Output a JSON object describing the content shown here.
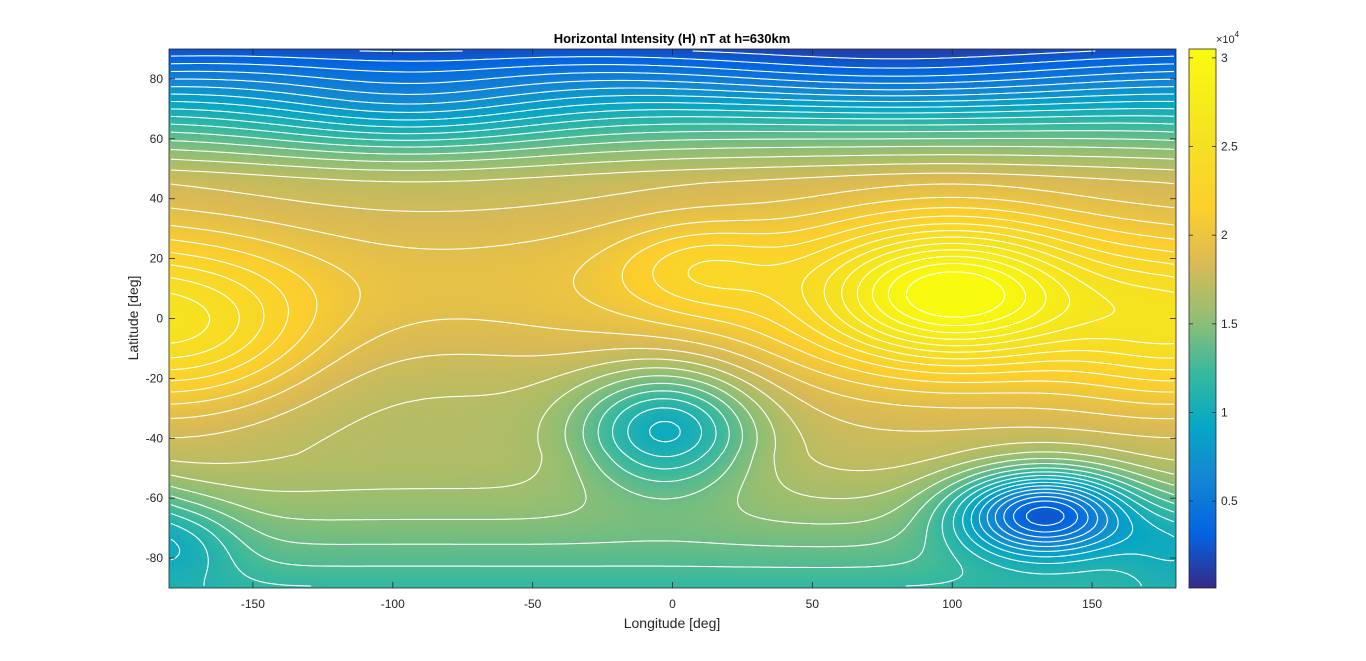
{
  "chart_data": {
    "type": "heatmap",
    "subtype": "filled contour with contour lines",
    "title": "Horizontal Intensity (H) nT at h=630km",
    "xlabel": "Longitude [deg]",
    "ylabel": "Latitude [deg]",
    "xlim": [
      -180,
      180
    ],
    "ylim": [
      -90,
      90
    ],
    "xticks": [
      -150,
      -100,
      -50,
      0,
      50,
      100,
      150
    ],
    "yticks": [
      -80,
      -60,
      -40,
      -20,
      0,
      20,
      40,
      60,
      80
    ],
    "colormap": "parula",
    "contour_line_color": "#ffffff",
    "colorbar": {
      "location": "right",
      "range": [
        100,
        30500
      ],
      "ticks": [
        0.5,
        1,
        1.5,
        2,
        2.5,
        3
      ],
      "tick_labels": [
        "0.5",
        "1",
        "1.5",
        "2",
        "2.5",
        "3"
      ],
      "exponent_label": "×10",
      "exponent_power": "4"
    },
    "features": [
      {
        "kind": "maximum",
        "lon": 100,
        "lat": 8,
        "value": 30500
      },
      {
        "kind": "local maximum",
        "lon": -180,
        "lat": -5,
        "value": 24500
      },
      {
        "kind": "local maximum",
        "lon": 10,
        "lat": 17,
        "value": 23500
      },
      {
        "kind": "minimum",
        "lon": 133,
        "lat": -65,
        "value": 3500
      },
      {
        "kind": "local minimum",
        "lon": -2,
        "lat": -37,
        "value": 10000
      },
      {
        "kind": "local minimum",
        "lon": -180,
        "lat": -75,
        "value": 9500
      },
      {
        "kind": "polar low",
        "lon": 0,
        "lat": 90,
        "value": 500
      }
    ],
    "grid": false
  }
}
